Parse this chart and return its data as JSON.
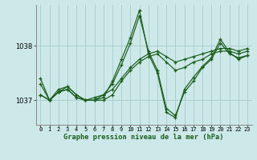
{
  "title": "Graphe pression niveau de la mer (hPa)",
  "bg_color": "#cce8e8",
  "grid_color": "#aacfcf",
  "line_color": "#1a5c1a",
  "yticks": [
    1037,
    1038
  ],
  "ylim": [
    1036.55,
    1038.75
  ],
  "xlim": [
    -0.5,
    23.5
  ],
  "xticks": [
    0,
    1,
    2,
    3,
    4,
    5,
    6,
    7,
    8,
    9,
    10,
    11,
    12,
    13,
    14,
    15,
    16,
    17,
    18,
    19,
    20,
    21,
    22,
    23
  ],
  "series": [
    [
      1037.1,
      1037.0,
      1037.2,
      1037.25,
      1037.1,
      1037.0,
      1037.0,
      1037.1,
      1037.2,
      1037.4,
      1037.6,
      1037.75,
      1037.85,
      1037.9,
      1037.8,
      1037.7,
      1037.75,
      1037.8,
      1037.85,
      1037.9,
      1037.95,
      1037.95,
      1037.9,
      1037.95
    ],
    [
      1037.1,
      1037.0,
      1037.15,
      1037.2,
      1037.05,
      1037.0,
      1037.0,
      1037.0,
      1037.1,
      1037.35,
      1037.55,
      1037.7,
      1037.8,
      1037.85,
      1037.7,
      1037.55,
      1037.6,
      1037.7,
      1037.75,
      1037.85,
      1037.9,
      1037.9,
      1037.85,
      1037.9
    ],
    [
      1037.3,
      1037.0,
      1037.15,
      1037.2,
      1037.05,
      1037.0,
      1037.05,
      1037.1,
      1037.3,
      1037.65,
      1038.05,
      1038.55,
      1037.9,
      1037.55,
      1036.85,
      1036.72,
      1037.15,
      1037.35,
      1037.6,
      1037.75,
      1038.05,
      1037.85,
      1037.78,
      1037.82
    ],
    [
      1037.4,
      1037.0,
      1037.15,
      1037.25,
      1037.1,
      1037.0,
      1037.0,
      1037.05,
      1037.35,
      1037.75,
      1038.15,
      1038.65,
      1037.85,
      1037.5,
      1036.78,
      1036.68,
      1037.2,
      1037.42,
      1037.62,
      1037.78,
      1038.12,
      1037.88,
      1037.75,
      1037.82
    ]
  ]
}
